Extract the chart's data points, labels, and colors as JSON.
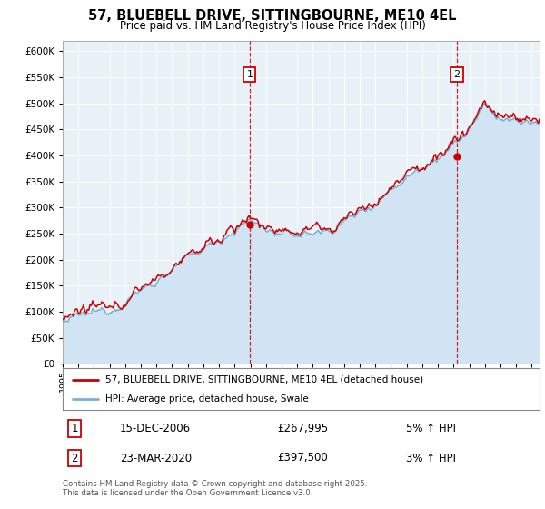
{
  "title": "57, BLUEBELL DRIVE, SITTINGBOURNE, ME10 4EL",
  "subtitle": "Price paid vs. HM Land Registry's House Price Index (HPI)",
  "legend_line1": "57, BLUEBELL DRIVE, SITTINGBOURNE, ME10 4EL (detached house)",
  "legend_line2": "HPI: Average price, detached house, Swale",
  "annotation1": {
    "label": "1",
    "date": "15-DEC-2006",
    "price": "£267,995",
    "pct": "5% ↑ HPI"
  },
  "annotation2": {
    "label": "2",
    "date": "23-MAR-2020",
    "price": "£397,500",
    "pct": "3% ↑ HPI"
  },
  "footnote": "Contains HM Land Registry data © Crown copyright and database right 2025.\nThis data is licensed under the Open Government Licence v3.0.",
  "hpi_line_color": "#7ab0d4",
  "hpi_fill_color": "#d0e4f4",
  "price_color": "#cc0000",
  "bg_color": "#e8f0f8",
  "plot_bg": "#e8f0f8",
  "ylim": [
    0,
    620000
  ],
  "yticks": [
    0,
    50000,
    100000,
    150000,
    200000,
    250000,
    300000,
    350000,
    400000,
    450000,
    500000,
    550000,
    600000
  ],
  "anno1_year": 2006.96,
  "anno2_year": 2020.21,
  "anno1_price": 267995,
  "anno2_price": 397500,
  "xmin": 1995,
  "xmax": 2025.5
}
